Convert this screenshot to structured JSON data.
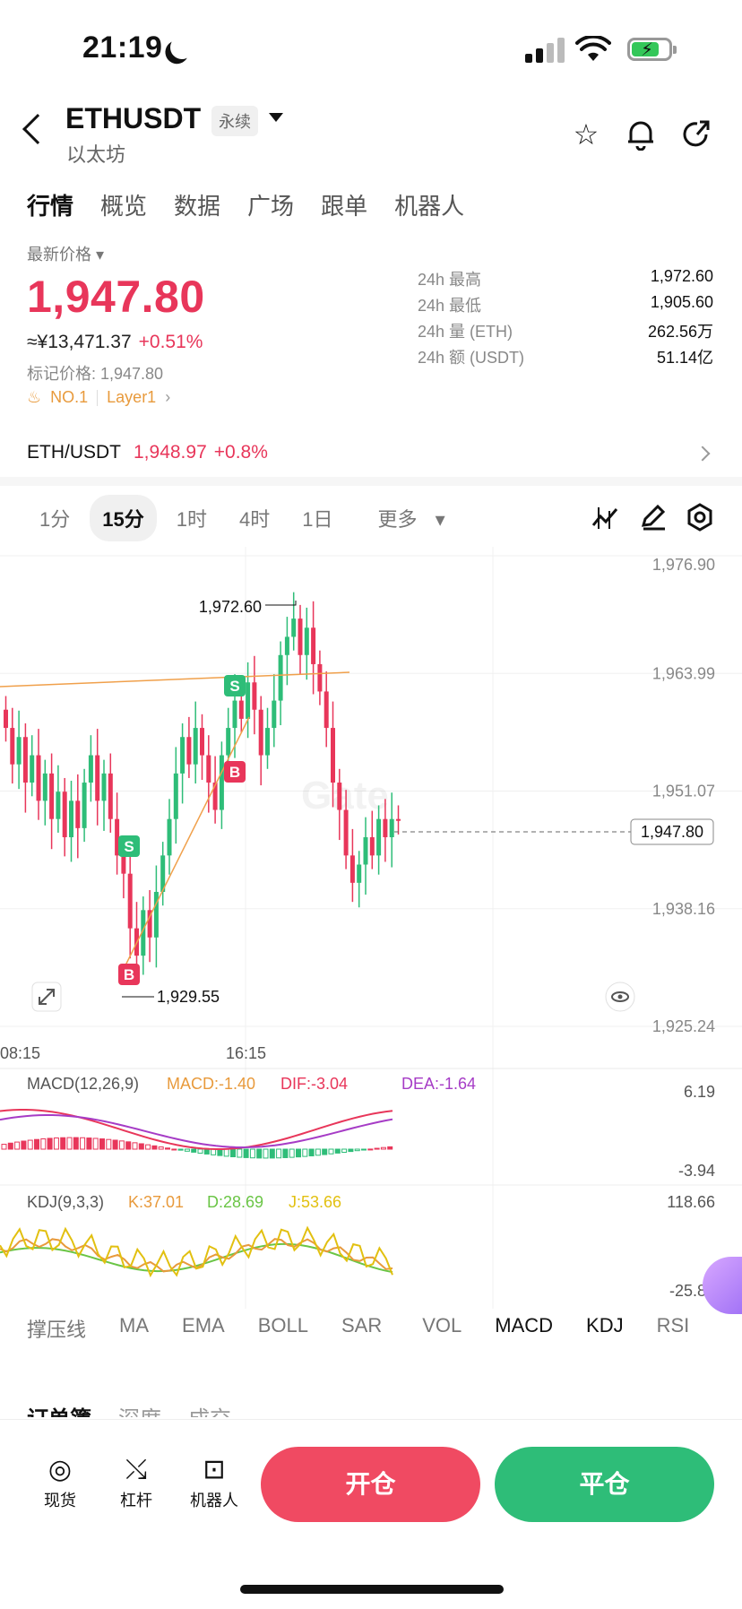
{
  "status_bar": {
    "time": "21:19"
  },
  "header": {
    "symbol": "ETHUSDT",
    "badge": "永续",
    "subname": "以太坊"
  },
  "tabs": [
    "行情",
    "概览",
    "数据",
    "广场",
    "跟单",
    "机器人"
  ],
  "price_block": {
    "label": "最新价格",
    "last_price": "1,947.80",
    "cny": "≈¥13,471.37",
    "change": "+0.51%",
    "mark_price": "标记价格: 1,947.80",
    "rank_tag": "NO.1",
    "sector_tag": "Layer1"
  },
  "stats": [
    {
      "k": "24h  最高",
      "v": "1,972.60"
    },
    {
      "k": "24h  最低",
      "v": "1,905.60"
    },
    {
      "k": "24h  量 (ETH)",
      "v": "262.56万"
    },
    {
      "k": "24h  额 (USDT)",
      "v": "51.14亿"
    }
  ],
  "spot": {
    "pair": "ETH/USDT",
    "price": "1,948.97",
    "change": "+0.8%"
  },
  "intervals": [
    "1分",
    "15分",
    "1时",
    "4时",
    "1日",
    "更多"
  ],
  "chart_data": {
    "type": "candlestick",
    "y_ticks": [
      "1,976.90",
      "1,963.99",
      "1,951.07",
      "1,938.16",
      "1,925.24"
    ],
    "ylim": [
      1925.24,
      1976.9
    ],
    "x_ticks": [
      "08:15",
      "16:15"
    ],
    "high_label": "1,972.60",
    "low_label": "1,929.55",
    "last_price_tag": "1,947.80",
    "watermark": "Gate",
    "signals": [
      {
        "type": "S",
        "candle": 20
      },
      {
        "type": "B",
        "candle": 20
      },
      {
        "type": "S",
        "candle": 37
      },
      {
        "type": "B",
        "candle": 37
      }
    ],
    "candles_close": [
      1958,
      1954,
      1957,
      1952,
      1955,
      1950,
      1953,
      1948,
      1951,
      1946,
      1950,
      1947,
      1952,
      1955,
      1950,
      1953,
      1948,
      1944,
      1942,
      1936,
      1933,
      1938,
      1935,
      1940,
      1944,
      1948,
      1953,
      1957,
      1954,
      1958,
      1955,
      1952,
      1949,
      1955,
      1958,
      1961,
      1959,
      1963,
      1960,
      1955,
      1958,
      1961,
      1966,
      1968,
      1970,
      1966,
      1969,
      1965,
      1962,
      1958,
      1952,
      1949,
      1944,
      1941,
      1943,
      1946,
      1944,
      1948,
      1946,
      1948,
      1947.8
    ],
    "macd": {
      "label": "MACD(12,26,9)",
      "macd": "MACD:-1.40",
      "dif": "DIF:-3.04",
      "dea": "DEA:-1.64",
      "top": "6.19",
      "bottom": "-3.94"
    },
    "kdj": {
      "label": "KDJ(9,3,3)",
      "k": "K:37.01",
      "d": "D:28.69",
      "j": "J:53.66",
      "top": "118.66",
      "bottom": "-25.83"
    }
  },
  "indicator_tabs": [
    "撑压线",
    "MA",
    "EMA",
    "BOLL",
    "SAR",
    "VOL",
    "MACD",
    "KDJ",
    "RSI"
  ],
  "book_tabs": [
    "订单簿",
    "深度",
    "成交"
  ],
  "bottom_bar": {
    "items": [
      "现货",
      "杠杆",
      "机器人"
    ],
    "open": "开仓",
    "close": "平仓"
  },
  "colors": {
    "up": "#e8365a",
    "down": "#2ebd78",
    "accent": "#e89a3c"
  }
}
